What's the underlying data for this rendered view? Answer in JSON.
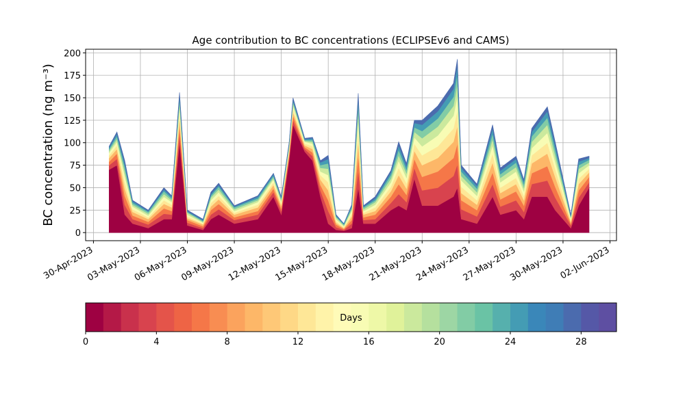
{
  "chart_data": {
    "type": "stacked_area",
    "title": "Age contribution to BC concentrations (ECLIPSEv6 and CAMS)",
    "ylabel": "BC concentration (ng m⁻³)",
    "grid": true,
    "xlim": [
      "2023-04-29 12:00",
      "2023-06-02 10:00"
    ],
    "xticks": [
      {
        "value": "2023-04-30 00:00",
        "label": "30-Apr-2023"
      },
      {
        "value": "2023-05-03 00:00",
        "label": "03-May-2023"
      },
      {
        "value": "2023-05-06 00:00",
        "label": "06-May-2023"
      },
      {
        "value": "2023-05-09 00:00",
        "label": "09-May-2023"
      },
      {
        "value": "2023-05-12 00:00",
        "label": "12-May-2023"
      },
      {
        "value": "2023-05-15 00:00",
        "label": "15-May-2023"
      },
      {
        "value": "2023-05-18 00:00",
        "label": "18-May-2023"
      },
      {
        "value": "2023-05-21 00:00",
        "label": "21-May-2023"
      },
      {
        "value": "2023-05-24 00:00",
        "label": "24-May-2023"
      },
      {
        "value": "2023-05-27 00:00",
        "label": "27-May-2023"
      },
      {
        "value": "2023-05-30 00:00",
        "label": "30-May-2023"
      },
      {
        "value": "2023-06-02 00:00",
        "label": "02-Jun-2023"
      }
    ],
    "ylim": [
      -9,
      204
    ],
    "yticks": [
      0,
      25,
      50,
      75,
      100,
      125,
      150,
      175,
      200
    ],
    "x": [
      "2023-05-01 00:00",
      "2023-05-01 12:00",
      "2023-05-02 00:00",
      "2023-05-02 12:00",
      "2023-05-03 12:00",
      "2023-05-04 12:00",
      "2023-05-05 00:00",
      "2023-05-05 12:00",
      "2023-05-06 00:00",
      "2023-05-07 00:00",
      "2023-05-07 12:00",
      "2023-05-08 00:00",
      "2023-05-09 00:00",
      "2023-05-10 12:00",
      "2023-05-11 12:00",
      "2023-05-12 00:00",
      "2023-05-12 12:00",
      "2023-05-12 18:00",
      "2023-05-13 12:00",
      "2023-05-14 00:00",
      "2023-05-14 12:00",
      "2023-05-15 00:00",
      "2023-05-15 12:00",
      "2023-05-16 00:00",
      "2023-05-16 12:00",
      "2023-05-16 22:00",
      "2023-05-17 06:00",
      "2023-05-18 00:00",
      "2023-05-19 00:00",
      "2023-05-19 12:00",
      "2023-05-20 00:00",
      "2023-05-20 12:00",
      "2023-05-21 00:00",
      "2023-05-22 00:00",
      "2023-05-23 00:00",
      "2023-05-23 06:00",
      "2023-05-23 12:00",
      "2023-05-24 12:00",
      "2023-05-25 12:00",
      "2023-05-26 00:00",
      "2023-05-27 00:00",
      "2023-05-27 12:00",
      "2023-05-28 00:00",
      "2023-05-29 00:00",
      "2023-05-29 12:00",
      "2023-05-30 12:00",
      "2023-05-31 00:00",
      "2023-05-31 16:00"
    ],
    "series": [
      {
        "color": "#9e0142",
        "values": [
          70,
          75,
          20,
          10,
          5,
          15,
          15,
          100,
          8,
          3,
          15,
          20,
          10,
          15,
          40,
          20,
          80,
          120,
          90,
          80,
          40,
          10,
          3,
          2,
          5,
          50,
          10,
          10,
          25,
          30,
          25,
          60,
          30,
          30,
          40,
          50,
          15,
          10,
          40,
          20,
          25,
          15,
          40,
          40,
          25,
          5,
          30,
          50
        ]
      },
      {
        "color": "#d8434e",
        "values": [
          5,
          7,
          11,
          5,
          4,
          6,
          5,
          10,
          3,
          2,
          5,
          6,
          4,
          5,
          5,
          4,
          4,
          5,
          3,
          5,
          7,
          14,
          3,
          1,
          5,
          19,
          4,
          5,
          8,
          13,
          9,
          12,
          17,
          20,
          23,
          26,
          11,
          8,
          14,
          9,
          11,
          8,
          14,
          18,
          14,
          3,
          9,
          6
        ]
      },
      {
        "color": "#f57748",
        "values": [
          4,
          6,
          10,
          4,
          3,
          6,
          4,
          9,
          3,
          2,
          5,
          6,
          3,
          4,
          4,
          3,
          3,
          5,
          2,
          4,
          6,
          12,
          3,
          1,
          4,
          17,
          3,
          5,
          7,
          11,
          8,
          10,
          15,
          18,
          20,
          23,
          10,
          7,
          13,
          8,
          10,
          7,
          12,
          16,
          12,
          2,
          8,
          6
        ]
      },
      {
        "color": "#fdb768",
        "values": [
          4,
          5,
          8,
          4,
          3,
          5,
          4,
          8,
          2,
          2,
          4,
          5,
          3,
          4,
          4,
          3,
          3,
          4,
          2,
          4,
          6,
          11,
          2,
          1,
          4,
          15,
          3,
          4,
          6,
          10,
          7,
          9,
          13,
          15,
          18,
          20,
          8,
          6,
          11,
          7,
          8,
          6,
          11,
          14,
          11,
          2,
          7,
          5
        ]
      },
      {
        "color": "#fee797",
        "values": [
          3,
          4,
          7,
          3,
          2,
          4,
          3,
          7,
          2,
          1,
          4,
          4,
          2,
          3,
          3,
          2,
          2,
          4,
          2,
          3,
          5,
          9,
          2,
          1,
          3,
          13,
          2,
          4,
          5,
          8,
          6,
          8,
          11,
          13,
          15,
          17,
          7,
          5,
          10,
          6,
          7,
          5,
          9,
          12,
          9,
          2,
          6,
          4
        ]
      },
      {
        "color": "#f8fcb4",
        "values": [
          3,
          4,
          7,
          3,
          2,
          4,
          3,
          6,
          2,
          1,
          3,
          4,
          2,
          3,
          3,
          2,
          2,
          3,
          2,
          3,
          4,
          8,
          2,
          1,
          3,
          12,
          2,
          3,
          5,
          8,
          6,
          7,
          10,
          12,
          14,
          16,
          7,
          5,
          9,
          6,
          7,
          5,
          8,
          11,
          8,
          2,
          6,
          4
        ]
      },
      {
        "color": "#cbe99d",
        "values": [
          2,
          3,
          5,
          2,
          2,
          3,
          2,
          5,
          2,
          1,
          3,
          3,
          2,
          2,
          2,
          2,
          2,
          3,
          1,
          2,
          4,
          7,
          2,
          1,
          2,
          9,
          2,
          3,
          4,
          6,
          5,
          6,
          9,
          10,
          11,
          13,
          5,
          4,
          7,
          5,
          5,
          4,
          7,
          9,
          7,
          1,
          5,
          3
        ]
      },
      {
        "color": "#82cca5",
        "values": [
          2,
          3,
          5,
          2,
          2,
          3,
          2,
          4,
          1,
          1,
          2,
          3,
          2,
          2,
          2,
          2,
          2,
          2,
          1,
          2,
          3,
          6,
          1,
          1,
          2,
          8,
          2,
          2,
          4,
          6,
          4,
          5,
          8,
          9,
          10,
          11,
          5,
          4,
          6,
          4,
          5,
          4,
          6,
          8,
          6,
          1,
          4,
          3
        ]
      },
      {
        "color": "#449cb4",
        "values": [
          2,
          3,
          4,
          2,
          1,
          2,
          2,
          4,
          1,
          1,
          2,
          2,
          1,
          2,
          2,
          1,
          1,
          2,
          1,
          2,
          3,
          5,
          1,
          1,
          2,
          7,
          1,
          2,
          3,
          5,
          4,
          5,
          7,
          8,
          9,
          10,
          4,
          3,
          6,
          4,
          4,
          3,
          5,
          7,
          5,
          1,
          4,
          2
        ]
      },
      {
        "color": "#4b6bae",
        "values": [
          1,
          2,
          3,
          1,
          1,
          2,
          1,
          3,
          1,
          1,
          2,
          2,
          1,
          1,
          1,
          1,
          1,
          2,
          1,
          1,
          2,
          4,
          1,
          0,
          1,
          5,
          1,
          2,
          2,
          4,
          3,
          3,
          5,
          6,
          6,
          7,
          3,
          2,
          4,
          3,
          3,
          2,
          4,
          5,
          4,
          1,
          3,
          2
        ]
      }
    ],
    "colorbar": {
      "label": "Days",
      "xlim": [
        0,
        30
      ],
      "ticks": [
        0,
        4,
        8,
        12,
        16,
        20,
        24,
        28
      ],
      "colors": [
        "#9e0142",
        "#b41947",
        "#c9314c",
        "#d8434e",
        "#e4544a",
        "#ee6445",
        "#f57748",
        "#f88d52",
        "#fba35d",
        "#fdb768",
        "#fec877",
        "#fed886",
        "#fee797",
        "#fff3a9",
        "#fffbb8",
        "#f8fcb4",
        "#eef8a7",
        "#e0f29a",
        "#cbe99d",
        "#b5e09e",
        "#9dd6a4",
        "#82cca5",
        "#6ac3a5",
        "#56b0ad",
        "#449cb4",
        "#3a87b9",
        "#3f7db6",
        "#4b6bae",
        "#5558a7",
        "#5e4fa2"
      ]
    }
  }
}
